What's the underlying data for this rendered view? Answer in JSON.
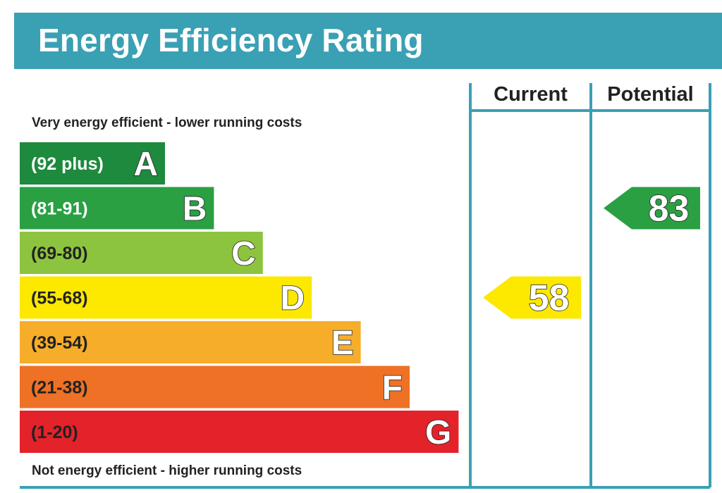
{
  "title": "Energy Efficiency Rating",
  "chart_data": {
    "type": "bar",
    "columns": [
      "Current",
      "Potential"
    ],
    "top_note": "Very energy efficient - lower running costs",
    "bottom_note": "Not energy efficient - higher running costs",
    "bands": [
      {
        "letter": "A",
        "range": "(92 plus)",
        "color": "#1d8a3e",
        "label_color": "light"
      },
      {
        "letter": "B",
        "range": "(81-91)",
        "color": "#2aa043",
        "label_color": "light"
      },
      {
        "letter": "C",
        "range": "(69-80)",
        "color": "#8dc43f",
        "label_color": "dark"
      },
      {
        "letter": "D",
        "range": "(55-68)",
        "color": "#fde800",
        "label_color": "dark"
      },
      {
        "letter": "E",
        "range": "(39-54)",
        "color": "#f6ad2a",
        "label_color": "dark"
      },
      {
        "letter": "F",
        "range": "(21-38)",
        "color": "#ee7125",
        "label_color": "dark"
      },
      {
        "letter": "G",
        "range": "(1-20)",
        "color": "#e3222a",
        "label_color": "dark"
      }
    ],
    "ratings": [
      {
        "column": "Current",
        "value": 58,
        "band": "D",
        "color": "#fde800"
      },
      {
        "column": "Potential",
        "value": 83,
        "band": "B",
        "color": "#2aa043"
      }
    ],
    "frame_color": "#3aa0b4"
  }
}
